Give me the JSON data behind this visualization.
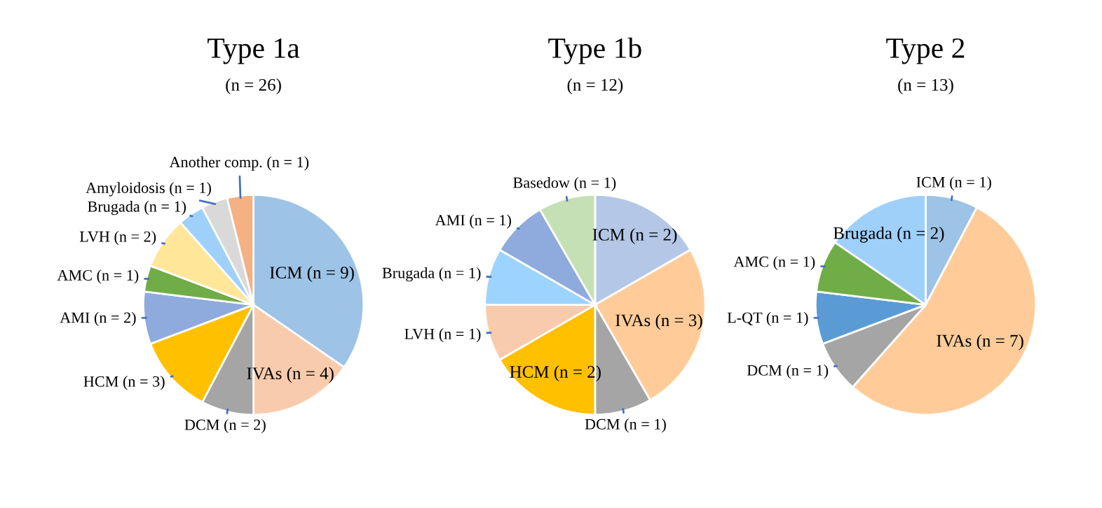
{
  "chart_data": [
    {
      "type": "pie",
      "title": "Type 1a",
      "subtitle": "(n = 26)",
      "categories": [
        "ICM (n = 9)",
        "IVAs (n = 4)",
        "DCM (n = 2)",
        "HCM (n = 3)",
        "AMI (n = 2)",
        "AMC (n = 1)",
        "LVH (n = 2)",
        "Brugada (n = 1)",
        "Amyloidosis (n = 1)",
        "Another comp. (n = 1)"
      ],
      "values": [
        9,
        4,
        2,
        3,
        2,
        1,
        2,
        1,
        1,
        1
      ],
      "colors": [
        "#9dc3e6",
        "#f8cbad",
        "#a5a5a5",
        "#ffc000",
        "#8faadc",
        "#70ad47",
        "#ffe699",
        "#9fd0fa",
        "#d9d9d9",
        "#f4b183"
      ]
    },
    {
      "type": "pie",
      "title": "Type 1b",
      "subtitle": "(n = 12)",
      "categories": [
        "ICM (n = 2)",
        "IVAs (n = 3)",
        "DCM (n = 1)",
        "HCM (n = 2)",
        "LVH (n = 1)",
        "Brugada (n = 1)",
        "AMI (n = 1)",
        "Basedow (n = 1)"
      ],
      "values": [
        2,
        3,
        1,
        2,
        1,
        1,
        1,
        1
      ],
      "colors": [
        "#b4c7e7",
        "#ffcc99",
        "#a5a5a5",
        "#ffc000",
        "#f8cbad",
        "#9dd3ff",
        "#8faadc",
        "#c5e0b4"
      ]
    },
    {
      "type": "pie",
      "title": "Type 2",
      "subtitle": "(n = 13)",
      "categories": [
        "ICM (n = 1)",
        "IVAs (n = 7)",
        "DCM (n = 1)",
        "L-QT (n = 1)",
        "AMC (n = 1)",
        "Brugada (n = 2)"
      ],
      "values": [
        1,
        7,
        1,
        1,
        1,
        2
      ],
      "colors": [
        "#9dc3e6",
        "#ffcc99",
        "#a5a5a5",
        "#5b9bd5",
        "#70ad47",
        "#9fd0fa"
      ]
    }
  ]
}
